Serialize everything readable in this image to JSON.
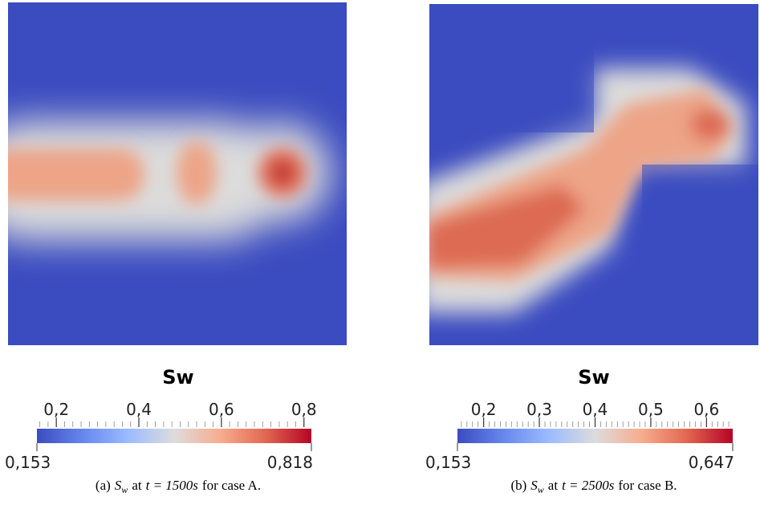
{
  "panels": [
    {
      "colorbar": {
        "title": "Sw",
        "min": {
          "value": 0.153,
          "label": "0,153"
        },
        "max": {
          "value": 0.818,
          "label": "0,818"
        },
        "ticks": [
          {
            "value": 0.2,
            "label": "0,2"
          },
          {
            "value": 0.4,
            "label": "0,4"
          },
          {
            "value": 0.6,
            "label": "0,6"
          },
          {
            "value": 0.8,
            "label": "0,8"
          }
        ]
      },
      "caption": {
        "label": "(a)",
        "symbol": "S",
        "subscript": "w",
        "middle": "at",
        "equation": "t = 1500s",
        "suffix": "for case A."
      }
    },
    {
      "colorbar": {
        "title": "Sw",
        "min": {
          "value": 0.153,
          "label": "0,153"
        },
        "max": {
          "value": 0.647,
          "label": "0,647"
        },
        "ticks": [
          {
            "value": 0.2,
            "label": "0,2"
          },
          {
            "value": 0.3,
            "label": "0,3"
          },
          {
            "value": 0.4,
            "label": "0,4"
          },
          {
            "value": 0.5,
            "label": "0,5"
          },
          {
            "value": 0.6,
            "label": "0,6"
          }
        ]
      },
      "caption": {
        "label": "(b)",
        "symbol": "S",
        "subscript": "w",
        "middle": "at",
        "equation": "t = 2500s",
        "suffix": "for case B."
      }
    }
  ]
}
